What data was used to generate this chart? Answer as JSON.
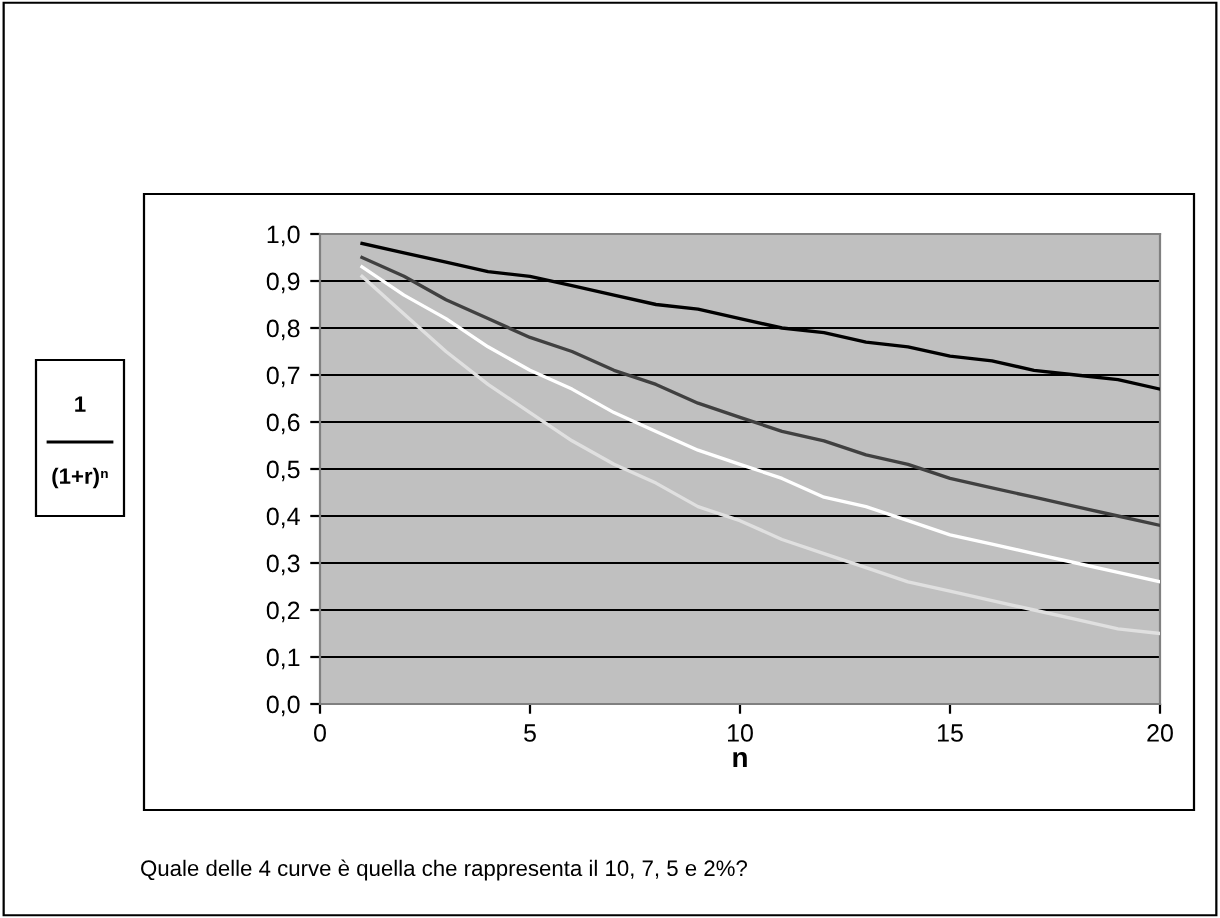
{
  "chart_data": {
    "type": "line",
    "ylabel": "1\n(1+r)ⁿ",
    "xlabel": "n",
    "x": [
      1,
      2,
      3,
      4,
      5,
      6,
      7,
      8,
      9,
      10,
      11,
      12,
      13,
      14,
      15,
      16,
      17,
      18,
      19,
      20
    ],
    "series": [
      {
        "color": "#000000",
        "values": [
          0.98,
          0.96,
          0.94,
          0.92,
          0.91,
          0.89,
          0.87,
          0.85,
          0.84,
          0.82,
          0.8,
          0.79,
          0.77,
          0.76,
          0.74,
          0.73,
          0.71,
          0.7,
          0.69,
          0.67
        ]
      },
      {
        "color": "#404040",
        "values": [
          0.95,
          0.91,
          0.86,
          0.82,
          0.78,
          0.75,
          0.71,
          0.68,
          0.64,
          0.61,
          0.58,
          0.56,
          0.53,
          0.51,
          0.48,
          0.46,
          0.44,
          0.42,
          0.4,
          0.38
        ]
      },
      {
        "color": "#ffffff",
        "values": [
          0.93,
          0.87,
          0.82,
          0.76,
          0.71,
          0.67,
          0.62,
          0.58,
          0.54,
          0.51,
          0.48,
          0.44,
          0.42,
          0.39,
          0.36,
          0.34,
          0.32,
          0.3,
          0.28,
          0.26
        ]
      },
      {
        "color": "#e0e0e0",
        "values": [
          0.91,
          0.83,
          0.75,
          0.68,
          0.62,
          0.56,
          0.51,
          0.47,
          0.42,
          0.39,
          0.35,
          0.32,
          0.29,
          0.26,
          0.24,
          0.22,
          0.2,
          0.18,
          0.16,
          0.15
        ]
      }
    ],
    "xlim": [
      0,
      20
    ],
    "xticks": [
      0,
      5,
      10,
      15,
      20
    ],
    "ylim": [
      0,
      1.0
    ],
    "yticks": [
      {
        "value": 0,
        "label": "0,0"
      },
      {
        "value": 0.1,
        "label": "0,1"
      },
      {
        "value": 0.2,
        "label": "0,2"
      },
      {
        "value": 0.3,
        "label": "0,3"
      },
      {
        "value": 0.4,
        "label": "0,4"
      },
      {
        "value": 0.5,
        "label": "0,5"
      },
      {
        "value": 0.6,
        "label": "0,6"
      },
      {
        "value": 0.7,
        "label": "0,7"
      },
      {
        "value": 0.8,
        "label": "0,8"
      },
      {
        "value": 0.9,
        "label": "0,9"
      },
      {
        "value": 1.0,
        "label": "1,0"
      }
    ],
    "grid": "y",
    "marker": "none",
    "line_style": "solid",
    "annotations": [
      "Quale delle 4 curve è quella che rappresenta il 10, 7, 5 e 2%?"
    ]
  }
}
